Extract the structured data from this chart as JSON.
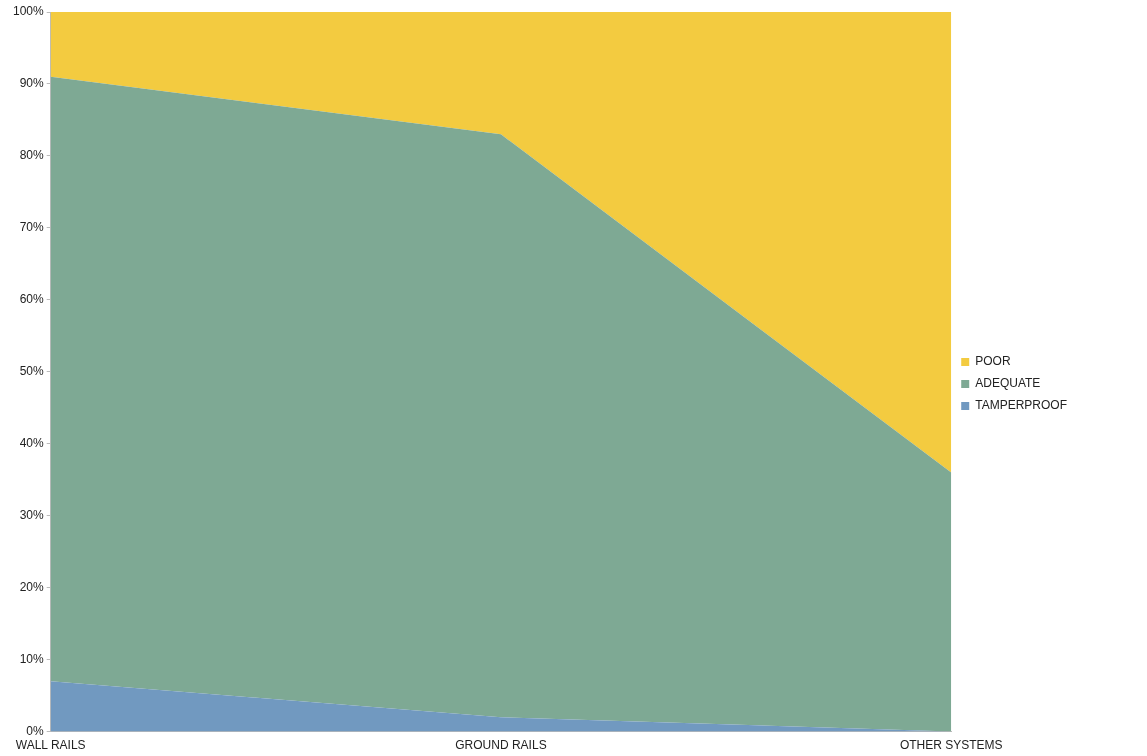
{
  "chart_data": {
    "type": "area",
    "stacked": true,
    "categories": [
      "WALL RAILS",
      "GROUND RAILS",
      "OTHER SYSTEMS"
    ],
    "series": [
      {
        "name": "TAMPERPROOF",
        "color": "#7199c0",
        "values": [
          7,
          2,
          0
        ]
      },
      {
        "name": "ADEQUATE",
        "color": "#7ea994",
        "values": [
          84,
          81,
          36
        ]
      },
      {
        "name": "POOR",
        "color": "#f3cb40",
        "values": [
          9,
          17,
          64
        ]
      }
    ],
    "ylim": [
      0,
      100
    ],
    "yticks": [
      {
        "value": 0,
        "label": "0%"
      },
      {
        "value": 10,
        "label": "10%"
      },
      {
        "value": 20,
        "label": "20%"
      },
      {
        "value": 30,
        "label": "30%"
      },
      {
        "value": 40,
        "label": "40%"
      },
      {
        "value": 50,
        "label": "50%"
      },
      {
        "value": 60,
        "label": "60%"
      },
      {
        "value": 70,
        "label": "70%"
      },
      {
        "value": 80,
        "label": "80%"
      },
      {
        "value": 90,
        "label": "90%"
      },
      {
        "value": 100,
        "label": "100%"
      }
    ],
    "grid": false,
    "legend": "right"
  }
}
